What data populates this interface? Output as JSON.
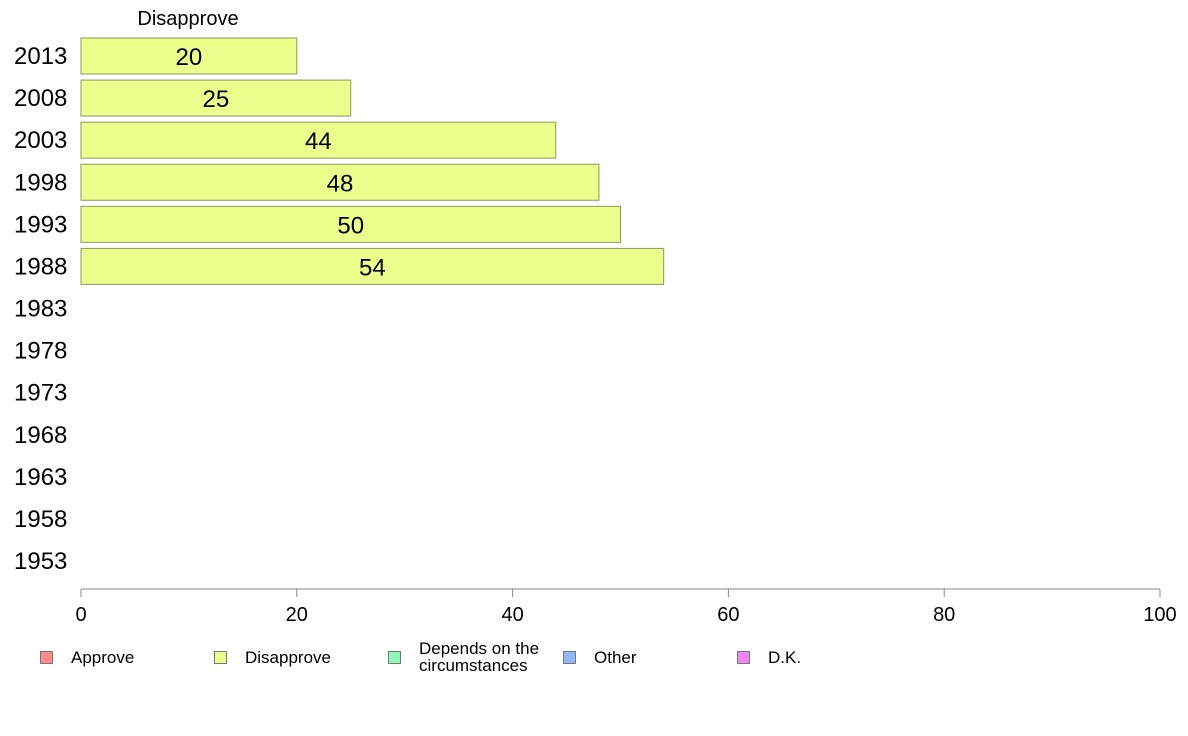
{
  "chart_data": {
    "type": "bar",
    "orientation": "horizontal",
    "title": "Disapprove",
    "categories": [
      "2013",
      "2008",
      "2003",
      "1998",
      "1993",
      "1988",
      "1983",
      "1978",
      "1973",
      "1968",
      "1963",
      "1958",
      "1953"
    ],
    "series": [
      {
        "name": "Disapprove",
        "values": [
          20,
          25,
          44,
          48,
          50,
          54,
          null,
          null,
          null,
          null,
          null,
          null,
          null
        ],
        "color": "#ecff8c"
      }
    ],
    "x_ticks": [
      "0",
      "20",
      "40",
      "60",
      "80",
      "100"
    ],
    "xlim": [
      0,
      100
    ],
    "grid": false,
    "legend_position": "bottom",
    "legend": [
      {
        "label": "Approve",
        "color": "#f98e86"
      },
      {
        "label": "Disapprove",
        "color": "#ecff8c"
      },
      {
        "label": "Depends on the circumstances",
        "color": "#8ef9b4"
      },
      {
        "label": "Other",
        "color": "#8cb9f9"
      },
      {
        "label": "D.K.",
        "color": "#f086f5"
      }
    ]
  }
}
